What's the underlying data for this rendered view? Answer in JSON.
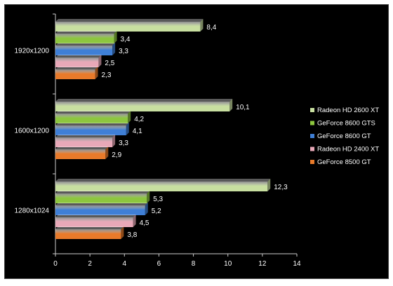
{
  "chart_data": {
    "type": "bar",
    "orientation": "horizontal",
    "categories": [
      "1920x1200",
      "1600x1200",
      "1280x1024"
    ],
    "series": [
      {
        "name": "Radeon HD 2600 XT",
        "values": [
          8.4,
          10.1,
          12.3
        ],
        "labels": [
          "8,4",
          "10,1",
          "12,3"
        ],
        "color": "#c8dfa0"
      },
      {
        "name": "GeForce 8600 GTS",
        "values": [
          3.4,
          4.2,
          5.3
        ],
        "labels": [
          "3,4",
          "4,2",
          "5,3"
        ],
        "color": "#8dc63f"
      },
      {
        "name": "GeForce 8600 GT",
        "values": [
          3.3,
          4.1,
          5.2
        ],
        "labels": [
          "3,3",
          "4,1",
          "5,2"
        ],
        "color": "#3f7fd6"
      },
      {
        "name": "Radeon HD 2400 XT",
        "values": [
          2.5,
          3.3,
          4.5
        ],
        "labels": [
          "2,5",
          "3,3",
          "4,5"
        ],
        "color": "#e8a8b8"
      },
      {
        "name": "GeForce 8500 GT",
        "values": [
          2.3,
          2.9,
          3.8
        ],
        "labels": [
          "2,3",
          "2,9",
          "3,8"
        ],
        "color": "#e87a2a"
      }
    ],
    "xlim": [
      0,
      14
    ],
    "xticks": [
      "0",
      "2",
      "4",
      "6",
      "8",
      "10",
      "12",
      "14"
    ],
    "grid": false,
    "legend_position": "right",
    "title": "",
    "xlabel": "",
    "ylabel": ""
  }
}
